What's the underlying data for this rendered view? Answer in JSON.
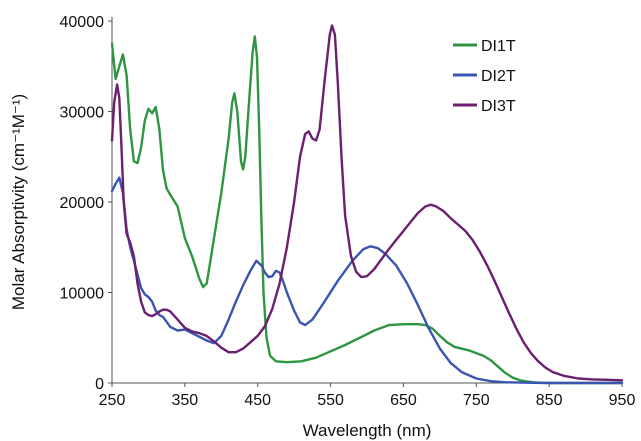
{
  "chart_data": {
    "type": "line",
    "xlabel": "Wavelength (nm)",
    "ylabel": "Molar Absorptivity (cm⁻¹M⁻¹)",
    "xlim": [
      250,
      950
    ],
    "ylim": [
      0,
      40000
    ],
    "xticks": [
      "250",
      "350",
      "450",
      "550",
      "650",
      "750",
      "850",
      "950"
    ],
    "yticks": [
      "0",
      "10000",
      "20000",
      "30000",
      "40000"
    ],
    "grid": false,
    "legend_position": "top-right",
    "series": [
      {
        "name": "DI1T",
        "color": "#2e9640",
        "points": [
          [
            250,
            37500
          ],
          [
            255,
            33600
          ],
          [
            260,
            35000
          ],
          [
            265,
            36300
          ],
          [
            270,
            34000
          ],
          [
            275,
            28000
          ],
          [
            280,
            24500
          ],
          [
            285,
            24300
          ],
          [
            290,
            26000
          ],
          [
            295,
            29000
          ],
          [
            300,
            30300
          ],
          [
            305,
            29800
          ],
          [
            310,
            30500
          ],
          [
            315,
            28000
          ],
          [
            320,
            23500
          ],
          [
            325,
            21500
          ],
          [
            330,
            20800
          ],
          [
            340,
            19500
          ],
          [
            350,
            16000
          ],
          [
            360,
            14000
          ],
          [
            370,
            11500
          ],
          [
            375,
            10600
          ],
          [
            380,
            11000
          ],
          [
            385,
            13500
          ],
          [
            390,
            16000
          ],
          [
            400,
            21000
          ],
          [
            410,
            27000
          ],
          [
            415,
            31000
          ],
          [
            418,
            32000
          ],
          [
            422,
            30000
          ],
          [
            427,
            24500
          ],
          [
            430,
            23600
          ],
          [
            433,
            25000
          ],
          [
            438,
            31000
          ],
          [
            443,
            36500
          ],
          [
            446,
            38300
          ],
          [
            449,
            36000
          ],
          [
            452,
            28000
          ],
          [
            455,
            18000
          ],
          [
            458,
            10000
          ],
          [
            462,
            5000
          ],
          [
            467,
            3000
          ],
          [
            475,
            2400
          ],
          [
            490,
            2300
          ],
          [
            510,
            2400
          ],
          [
            530,
            2800
          ],
          [
            550,
            3500
          ],
          [
            570,
            4200
          ],
          [
            590,
            5000
          ],
          [
            610,
            5800
          ],
          [
            630,
            6400
          ],
          [
            650,
            6500
          ],
          [
            670,
            6500
          ],
          [
            680,
            6400
          ],
          [
            690,
            6000
          ],
          [
            700,
            5200
          ],
          [
            710,
            4500
          ],
          [
            720,
            4000
          ],
          [
            740,
            3600
          ],
          [
            760,
            3000
          ],
          [
            770,
            2500
          ],
          [
            780,
            1800
          ],
          [
            790,
            1100
          ],
          [
            800,
            600
          ],
          [
            810,
            300
          ],
          [
            820,
            150
          ],
          [
            830,
            50
          ],
          [
            850,
            0
          ],
          [
            950,
            0
          ]
        ]
      },
      {
        "name": "DI2T",
        "color": "#3a55b0",
        "points": [
          [
            250,
            21200
          ],
          [
            255,
            22000
          ],
          [
            260,
            22700
          ],
          [
            265,
            21000
          ],
          [
            270,
            17000
          ],
          [
            275,
            15000
          ],
          [
            280,
            13500
          ],
          [
            285,
            12000
          ],
          [
            290,
            10500
          ],
          [
            295,
            9800
          ],
          [
            300,
            9500
          ],
          [
            305,
            9000
          ],
          [
            310,
            8000
          ],
          [
            315,
            7500
          ],
          [
            320,
            7300
          ],
          [
            330,
            6200
          ],
          [
            340,
            5800
          ],
          [
            350,
            5900
          ],
          [
            360,
            5500
          ],
          [
            370,
            5100
          ],
          [
            380,
            4700
          ],
          [
            390,
            4400
          ],
          [
            400,
            5200
          ],
          [
            410,
            7000
          ],
          [
            420,
            9000
          ],
          [
            430,
            10800
          ],
          [
            440,
            12400
          ],
          [
            448,
            13500
          ],
          [
            455,
            13000
          ],
          [
            460,
            12200
          ],
          [
            465,
            11700
          ],
          [
            470,
            11800
          ],
          [
            475,
            12400
          ],
          [
            480,
            12200
          ],
          [
            485,
            11200
          ],
          [
            490,
            10000
          ],
          [
            500,
            8000
          ],
          [
            508,
            6700
          ],
          [
            515,
            6400
          ],
          [
            525,
            7000
          ],
          [
            540,
            8800
          ],
          [
            560,
            11300
          ],
          [
            580,
            13500
          ],
          [
            595,
            14800
          ],
          [
            605,
            15100
          ],
          [
            615,
            14900
          ],
          [
            625,
            14300
          ],
          [
            640,
            13000
          ],
          [
            655,
            11000
          ],
          [
            670,
            8600
          ],
          [
            685,
            6000
          ],
          [
            700,
            3800
          ],
          [
            715,
            2200
          ],
          [
            730,
            1200
          ],
          [
            750,
            500
          ],
          [
            770,
            200
          ],
          [
            790,
            80
          ],
          [
            820,
            30
          ],
          [
            850,
            0
          ],
          [
            950,
            0
          ]
        ]
      },
      {
        "name": "DI3T",
        "color": "#6b1f6f",
        "points": [
          [
            250,
            26800
          ],
          [
            253,
            31000
          ],
          [
            257,
            33000
          ],
          [
            260,
            31500
          ],
          [
            263,
            26000
          ],
          [
            266,
            20000
          ],
          [
            270,
            16500
          ],
          [
            275,
            15500
          ],
          [
            280,
            14000
          ],
          [
            285,
            11000
          ],
          [
            290,
            9000
          ],
          [
            295,
            7800
          ],
          [
            300,
            7500
          ],
          [
            305,
            7400
          ],
          [
            310,
            7600
          ],
          [
            315,
            7900
          ],
          [
            320,
            8100
          ],
          [
            325,
            8100
          ],
          [
            330,
            7900
          ],
          [
            340,
            7000
          ],
          [
            350,
            6100
          ],
          [
            360,
            5700
          ],
          [
            370,
            5500
          ],
          [
            380,
            5200
          ],
          [
            390,
            4600
          ],
          [
            400,
            3900
          ],
          [
            410,
            3400
          ],
          [
            420,
            3400
          ],
          [
            430,
            3800
          ],
          [
            440,
            4500
          ],
          [
            450,
            5200
          ],
          [
            460,
            6300
          ],
          [
            470,
            8200
          ],
          [
            480,
            11000
          ],
          [
            490,
            15000
          ],
          [
            500,
            20000
          ],
          [
            508,
            25000
          ],
          [
            515,
            27500
          ],
          [
            520,
            27800
          ],
          [
            525,
            27000
          ],
          [
            530,
            26800
          ],
          [
            535,
            28000
          ],
          [
            542,
            33500
          ],
          [
            549,
            38500
          ],
          [
            552,
            39500
          ],
          [
            556,
            38500
          ],
          [
            560,
            33000
          ],
          [
            565,
            25000
          ],
          [
            570,
            18500
          ],
          [
            578,
            14000
          ],
          [
            585,
            12300
          ],
          [
            592,
            11700
          ],
          [
            600,
            11800
          ],
          [
            610,
            12600
          ],
          [
            620,
            13700
          ],
          [
            630,
            14800
          ],
          [
            640,
            15800
          ],
          [
            650,
            16800
          ],
          [
            660,
            17800
          ],
          [
            670,
            18800
          ],
          [
            680,
            19500
          ],
          [
            688,
            19700
          ],
          [
            695,
            19500
          ],
          [
            705,
            19000
          ],
          [
            715,
            18200
          ],
          [
            725,
            17500
          ],
          [
            735,
            16800
          ],
          [
            745,
            15800
          ],
          [
            755,
            14500
          ],
          [
            765,
            13000
          ],
          [
            775,
            11300
          ],
          [
            785,
            9500
          ],
          [
            795,
            7700
          ],
          [
            805,
            6000
          ],
          [
            815,
            4500
          ],
          [
            825,
            3300
          ],
          [
            835,
            2400
          ],
          [
            845,
            1700
          ],
          [
            855,
            1200
          ],
          [
            870,
            800
          ],
          [
            890,
            500
          ],
          [
            910,
            400
          ],
          [
            930,
            350
          ],
          [
            950,
            300
          ]
        ]
      }
    ]
  }
}
